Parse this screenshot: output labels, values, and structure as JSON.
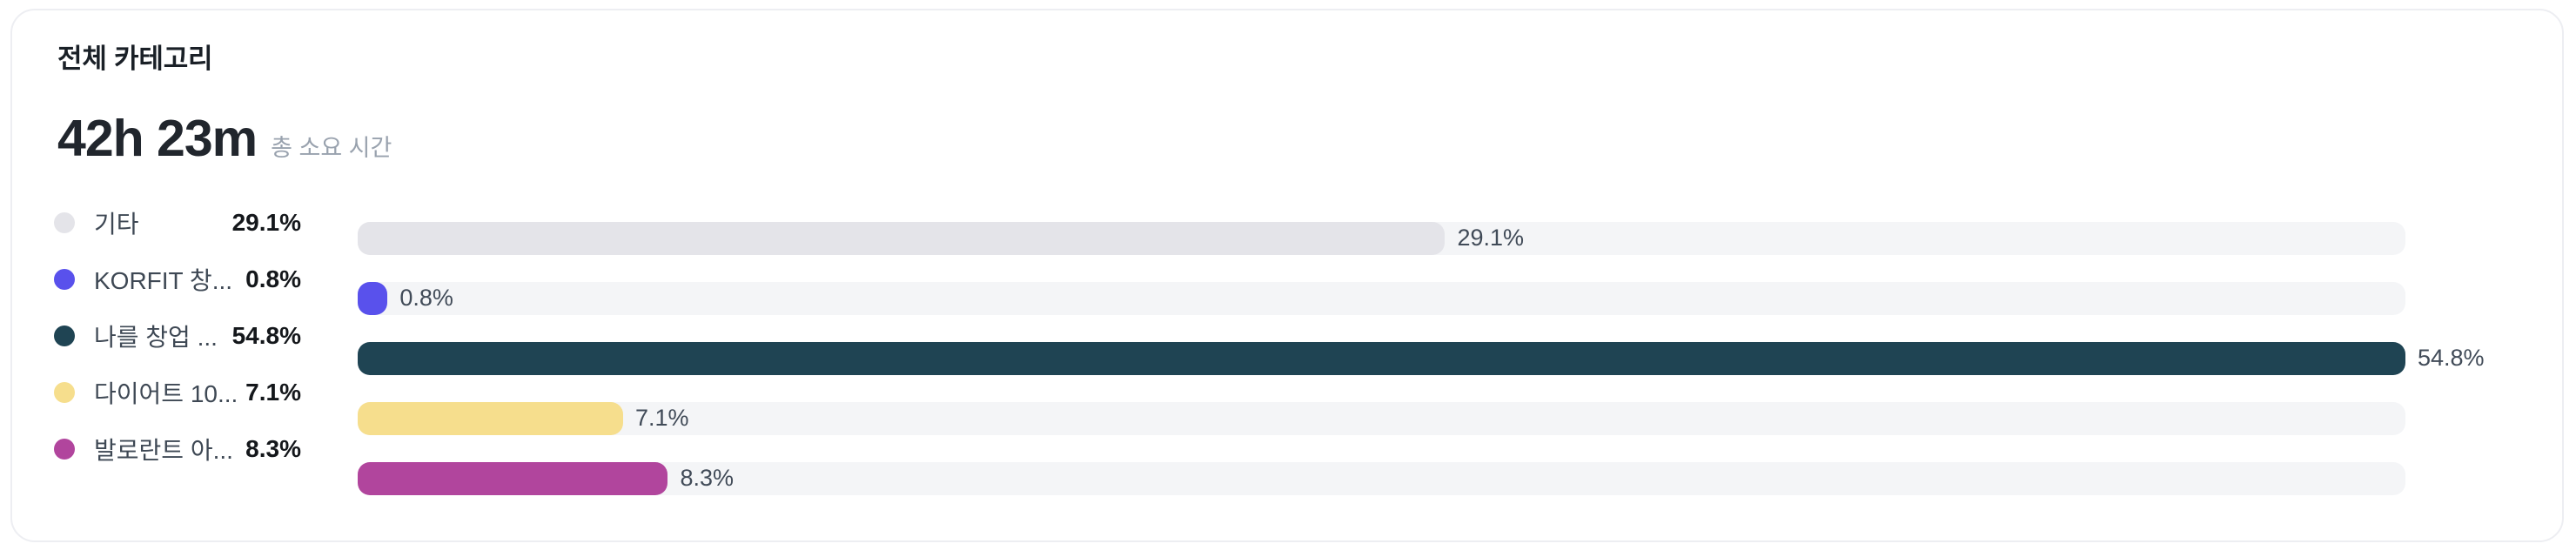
{
  "card": {
    "title": "전체 카테고리",
    "total_time": "42h 23m",
    "total_time_caption": "총 소요 시간"
  },
  "chart_data": {
    "type": "bar",
    "orientation": "horizontal",
    "title": "전체 카테고리",
    "total": "42h 23m",
    "total_label": "총 소요 시간",
    "categories": [
      "기타",
      "KORFIT 창...",
      "나를 창업 ...",
      "다이어트 10...",
      "발로란트 아..."
    ],
    "values": [
      29.1,
      0.8,
      54.8,
      7.1,
      8.3
    ],
    "value_labels": [
      "29.1%",
      "0.8%",
      "54.8%",
      "7.1%",
      "8.3%"
    ],
    "colors": [
      "#e4e4e9",
      "#5951ec",
      "#1f4453",
      "#f6de8d",
      "#b1459d"
    ],
    "track_color": "#f4f5f7",
    "bar_scale_max": 54.8,
    "legend_position": "left",
    "grid": false
  }
}
